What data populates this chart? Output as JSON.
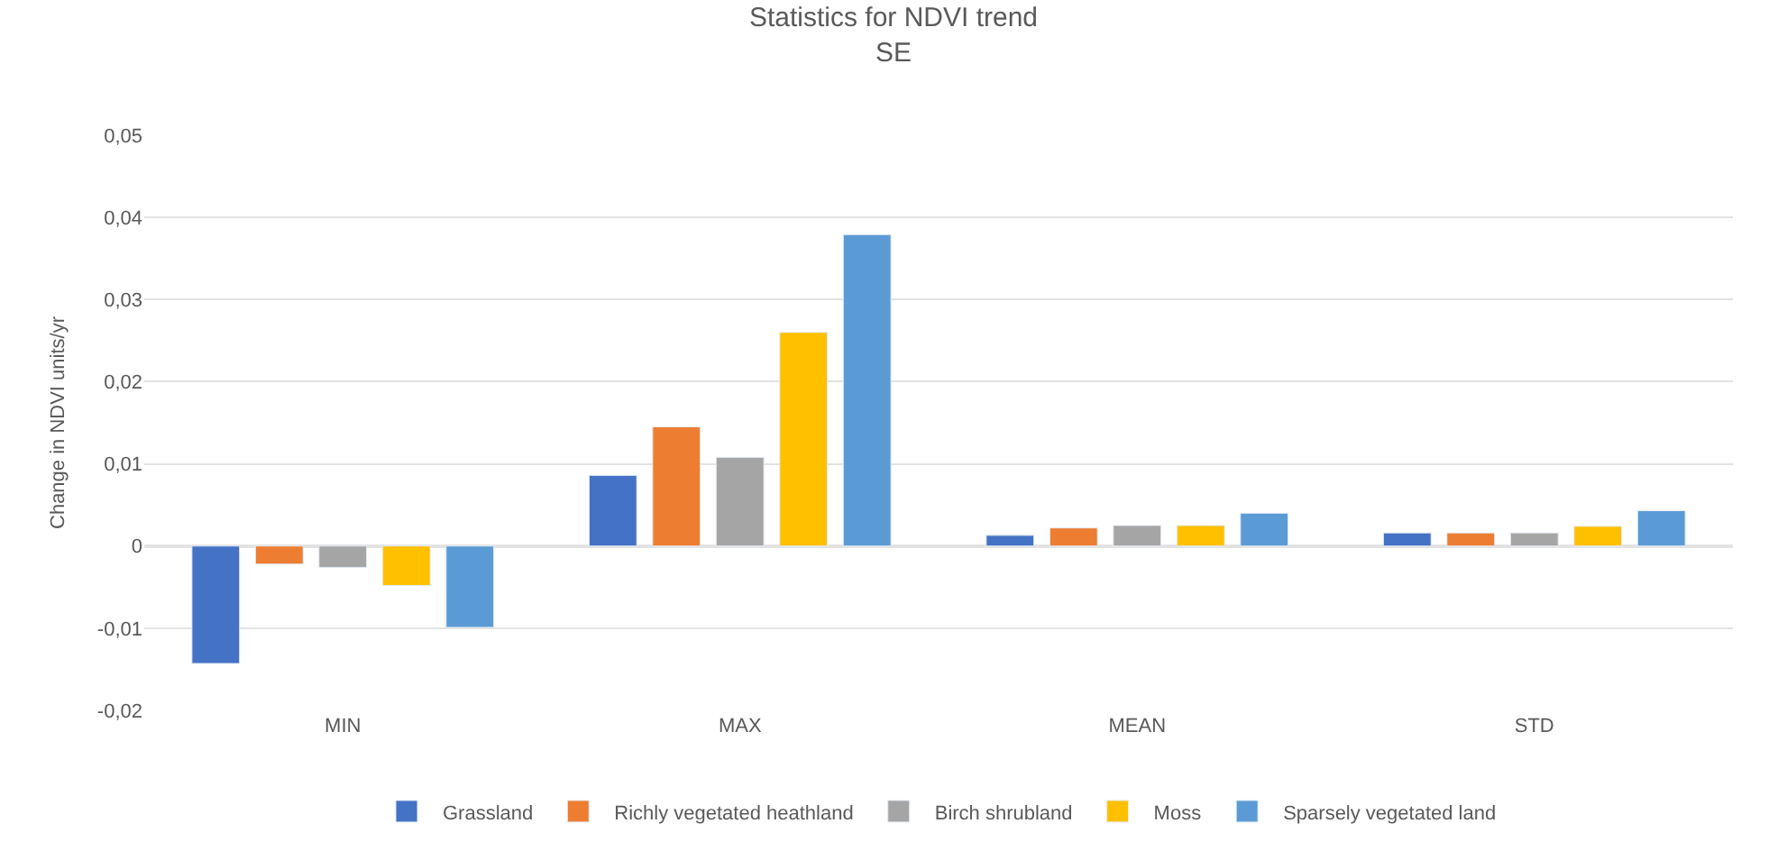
{
  "chart_data": {
    "type": "bar",
    "title": "Statistics for NDVI trend",
    "subtitle": "SE",
    "ylabel": "Change in NDVI units/yr",
    "categories": [
      "MIN",
      "MAX",
      "MEAN",
      "STD"
    ],
    "series": [
      {
        "name": "Grassland",
        "color": "#4472c4",
        "values": [
          -0.0143,
          0.0086,
          0.0013,
          0.0016
        ]
      },
      {
        "name": "Richly vegetated heathland",
        "color": "#ed7d31",
        "values": [
          -0.0022,
          0.0145,
          0.0022,
          0.0016
        ]
      },
      {
        "name": "Birch shrubland",
        "color": "#a5a5a5",
        "values": [
          -0.0026,
          0.0108,
          0.0025,
          0.0016
        ]
      },
      {
        "name": "Moss",
        "color": "#ffc000",
        "values": [
          -0.0048,
          0.026,
          0.0025,
          0.0024
        ]
      },
      {
        "name": "Sparsely vegetated land",
        "color": "#5b9bd5",
        "values": [
          -0.0099,
          0.0379,
          0.004,
          0.0043
        ]
      }
    ],
    "ylim": [
      -0.02,
      0.05
    ],
    "yticks": [
      {
        "value": -0.02,
        "label": "-0,02"
      },
      {
        "value": -0.01,
        "label": "-0,01"
      },
      0,
      {
        "value": 0.01,
        "label": "0,01"
      },
      {
        "value": 0.02,
        "label": "0,02"
      },
      {
        "value": 0.03,
        "label": "0,03"
      },
      {
        "value": 0.04,
        "label": "0,04"
      },
      {
        "value": 0.05,
        "label": "0,05"
      }
    ],
    "grid": "y",
    "legend": "bottom"
  }
}
